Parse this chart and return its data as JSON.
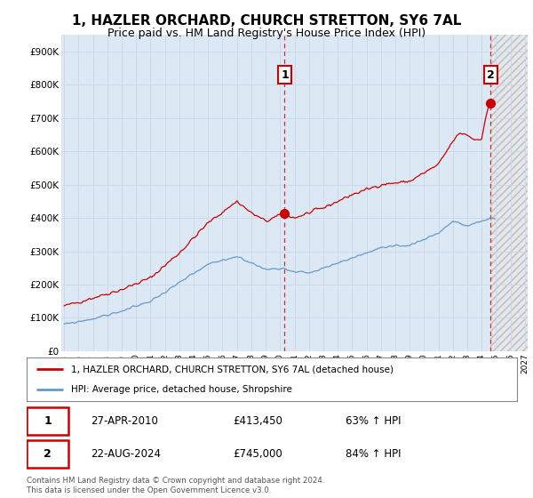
{
  "title": "1, HAZLER ORCHARD, CHURCH STRETTON, SY6 7AL",
  "subtitle": "Price paid vs. HM Land Registry's House Price Index (HPI)",
  "title_fontsize": 11,
  "subtitle_fontsize": 9,
  "ytick_values": [
    0,
    100000,
    200000,
    300000,
    400000,
    500000,
    600000,
    700000,
    800000,
    900000
  ],
  "ylim": [
    0,
    950000
  ],
  "xlim_start": 1994.8,
  "xlim_end": 2027.2,
  "xticks": [
    1995,
    1996,
    1997,
    1998,
    1999,
    2000,
    2001,
    2002,
    2003,
    2004,
    2005,
    2006,
    2007,
    2008,
    2009,
    2010,
    2011,
    2012,
    2013,
    2014,
    2015,
    2016,
    2017,
    2018,
    2019,
    2020,
    2021,
    2022,
    2023,
    2024,
    2025,
    2026,
    2027
  ],
  "red_line_color": "#cc0000",
  "blue_line_color": "#6699cc",
  "plot_bg_color": "#dce9f5",
  "future_hatch_color": "#c0c0c0",
  "future_start": 2024.63,
  "transaction1": {
    "label": "1",
    "date": "27-APR-2010",
    "price": 413450,
    "hpi_pct": "63% ↑ HPI",
    "x": 2010.32
  },
  "transaction2": {
    "label": "2",
    "date": "22-AUG-2024",
    "price": 745000,
    "hpi_pct": "84% ↑ HPI",
    "x": 2024.63
  },
  "legend_label_red": "1, HAZLER ORCHARD, CHURCH STRETTON, SY6 7AL (detached house)",
  "legend_label_blue": "HPI: Average price, detached house, Shropshire",
  "footer": "Contains HM Land Registry data © Crown copyright and database right 2024.\nThis data is licensed under the Open Government Licence v3.0.",
  "background_color": "#ffffff",
  "grid_color": "#c8d8e8",
  "annotation_box_color": "#cc0000"
}
